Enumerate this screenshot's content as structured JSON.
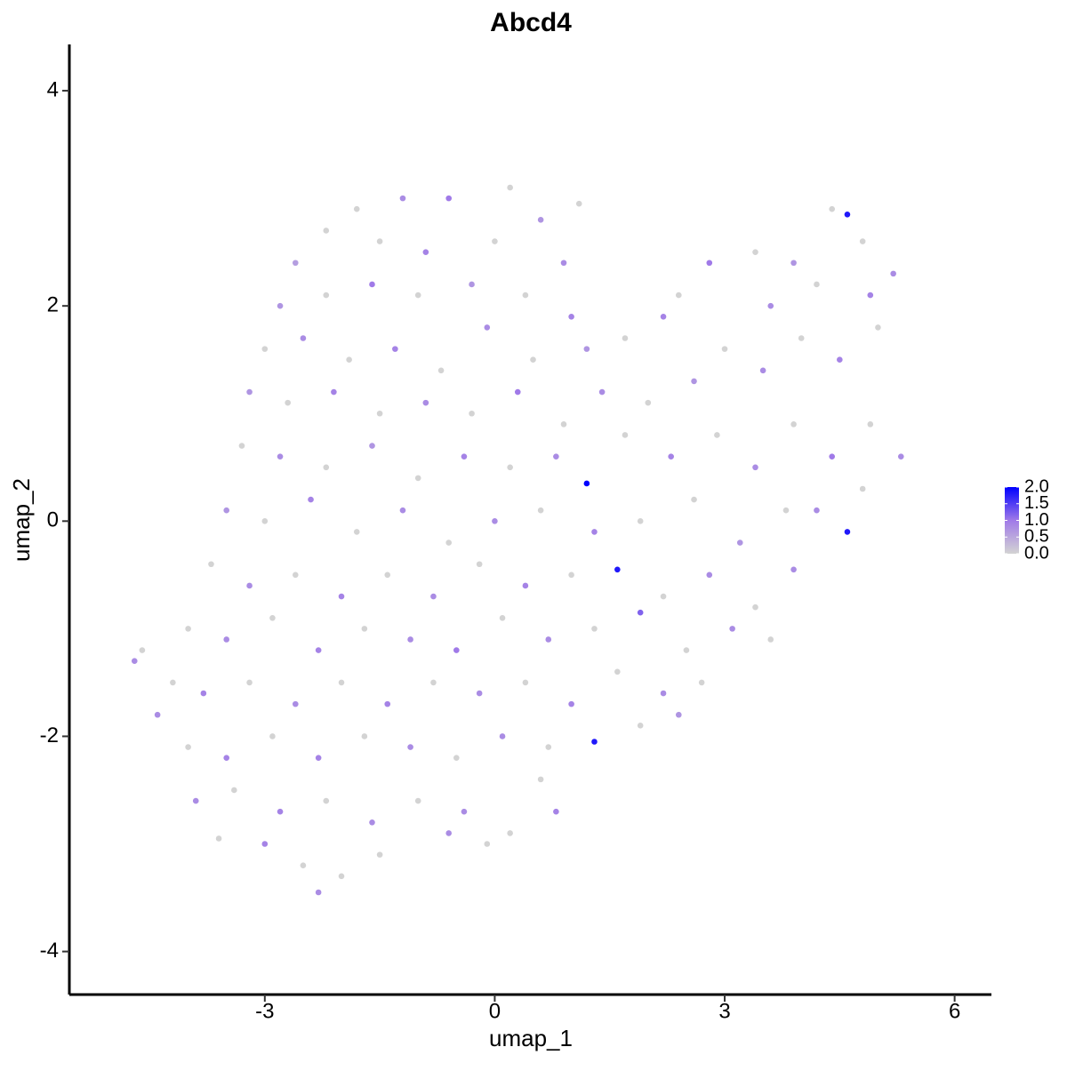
{
  "chart_data": {
    "type": "scatter",
    "title": "Abcd4",
    "x_label": "umap_1",
    "y_label": "umap_2",
    "xlim": [
      -5.55,
      6.48
    ],
    "ylim": [
      -4.4,
      4.43
    ],
    "xticks": [
      -3,
      0,
      3,
      6
    ],
    "yticks": [
      -4,
      -2,
      0,
      2,
      4
    ],
    "color_scale": [
      "#d3d3d3",
      "#a07ae8",
      "#0000ff"
    ],
    "clim": [
      0,
      2
    ],
    "cticks": [
      {
        "value": 0,
        "label": "0.0"
      },
      {
        "value": 0.5,
        "label": "0.5"
      },
      {
        "value": 1,
        "label": "1.0"
      },
      {
        "value": 1.5,
        "label": "1.5"
      },
      {
        "value": 2,
        "label": "2.0"
      }
    ],
    "x": [
      -2.2,
      -1.8,
      -1.2,
      -0.6,
      0.2,
      0.6,
      1.1,
      -2.6,
      -1.5,
      -0.9,
      0.0,
      0.9,
      -2.8,
      -2.2,
      -1.6,
      -1.0,
      -0.3,
      0.4,
      1.0,
      -3.0,
      -2.5,
      -1.9,
      -1.3,
      -0.7,
      -0.1,
      0.5,
      1.2,
      1.7,
      2.2,
      -3.2,
      -2.7,
      -2.1,
      -1.5,
      -0.9,
      -0.3,
      0.3,
      0.9,
      1.4,
      2.0,
      2.6,
      3.0,
      3.5,
      4.0,
      4.5,
      5.0,
      5.2,
      4.8,
      4.4,
      4.6,
      3.9,
      3.4,
      2.8,
      2.4,
      3.6,
      4.2,
      4.9,
      -3.3,
      -2.8,
      -2.2,
      -1.6,
      -1.0,
      -0.4,
      0.2,
      0.8,
      1.2,
      1.7,
      2.3,
      2.9,
      3.4,
      3.9,
      4.4,
      4.9,
      5.3,
      4.8,
      4.2,
      4.6,
      -3.5,
      -3.0,
      -2.4,
      -1.8,
      -1.2,
      -0.6,
      0.0,
      0.6,
      1.3,
      1.9,
      2.6,
      3.2,
      3.8,
      -3.7,
      -3.2,
      -2.6,
      -2.0,
      -1.4,
      -0.8,
      -0.2,
      0.4,
      1.0,
      1.6,
      2.2,
      2.8,
      3.4,
      3.9,
      -4.0,
      -3.5,
      -2.9,
      -2.3,
      -1.7,
      -1.1,
      -0.5,
      0.1,
      0.7,
      1.3,
      1.9,
      2.5,
      3.1,
      3.6,
      -4.7,
      -4.6,
      -4.2,
      -3.8,
      -3.2,
      -2.6,
      -2.0,
      -1.4,
      -0.8,
      -0.2,
      0.4,
      1.0,
      1.6,
      2.2,
      2.7,
      -4.4,
      -4.0,
      -3.5,
      -2.9,
      -2.3,
      -1.7,
      -1.1,
      -0.5,
      0.1,
      0.7,
      1.3,
      1.9,
      2.4,
      -3.9,
      -3.4,
      -2.8,
      -2.2,
      -1.6,
      -1.0,
      -0.4,
      0.2,
      0.8,
      0.6,
      -3.6,
      -3.0,
      -2.5,
      -2.3,
      -2.0,
      -1.5,
      -0.1,
      -0.6
    ],
    "values": [
      2.7,
      2.9,
      3.0,
      3.0,
      3.1,
      2.8,
      2.95,
      2.4,
      2.6,
      2.5,
      2.6,
      2.4,
      2.0,
      2.1,
      2.2,
      2.1,
      2.2,
      2.1,
      1.9,
      1.6,
      1.7,
      1.5,
      1.6,
      1.4,
      1.8,
      1.5,
      1.6,
      1.7,
      1.9,
      1.2,
      1.1,
      1.2,
      1.0,
      1.1,
      1.0,
      1.2,
      0.9,
      1.2,
      1.1,
      1.3,
      1.6,
      1.4,
      1.7,
      1.5,
      1.8,
      2.3,
      2.6,
      2.9,
      2.85,
      2.4,
      2.5,
      2.4,
      2.1,
      2.0,
      2.2,
      2.1,
      0.7,
      0.6,
      0.5,
      0.7,
      0.4,
      0.6,
      0.5,
      0.6,
      0.35,
      0.8,
      0.6,
      0.8,
      0.5,
      0.9,
      0.6,
      0.9,
      0.6,
      0.3,
      0.1,
      -0.1,
      0.1,
      0.0,
      0.2,
      -0.1,
      0.1,
      -0.2,
      0.0,
      0.1,
      -0.1,
      0.0,
      0.2,
      -0.2,
      0.1,
      -0.4,
      -0.6,
      -0.5,
      -0.7,
      -0.5,
      -0.7,
      -0.4,
      -0.6,
      -0.5,
      -0.45,
      -0.7,
      -0.5,
      -0.8,
      -0.45,
      -1.0,
      -1.1,
      -0.9,
      -1.2,
      -1.0,
      -1.1,
      -1.2,
      -0.9,
      -1.1,
      -1.0,
      -0.85,
      -1.2,
      -1.0,
      -1.1,
      -1.3,
      -1.2,
      -1.5,
      -1.6,
      -1.5,
      -1.7,
      -1.5,
      -1.7,
      -1.5,
      -1.6,
      -1.5,
      -1.7,
      -1.4,
      -1.6,
      -1.5,
      -1.8,
      -2.1,
      -2.2,
      -2.0,
      -2.2,
      -2.0,
      -2.1,
      -2.2,
      -2.0,
      -2.1,
      -2.05,
      -1.9,
      -1.8,
      -2.6,
      -2.5,
      -2.7,
      -2.6,
      -2.8,
      -2.6,
      -2.7,
      -2.9,
      -2.7,
      -2.4,
      -2.95,
      -3.0,
      -3.2,
      -3.45,
      -3.3,
      -3.1,
      -3.0,
      -2.9
    ],
    "color_values": [
      0,
      0,
      0.8,
      1.0,
      0,
      0.7,
      0,
      0.6,
      0,
      0.9,
      0,
      0.8,
      0.7,
      0,
      1.0,
      0,
      0.7,
      0,
      0.9,
      0,
      0.8,
      0,
      0.9,
      0,
      0.8,
      0,
      0.7,
      0,
      0.9,
      0.7,
      0,
      0.9,
      0,
      0.8,
      0,
      1.0,
      0,
      0.8,
      0,
      0.7,
      0,
      0.8,
      0,
      0.9,
      0,
      0.8,
      0,
      0,
      1.8,
      0.7,
      0,
      1.0,
      0,
      0.8,
      0,
      0.9,
      0,
      0.8,
      0,
      0.7,
      0,
      0.9,
      0,
      0.8,
      2.0,
      0,
      0.9,
      0,
      0.8,
      0,
      1.0,
      0,
      0.8,
      0,
      0.8,
      1.8,
      0.7,
      0,
      0.9,
      0,
      0.8,
      0,
      0.8,
      0,
      0.9,
      0,
      0,
      0.7,
      0,
      0,
      0.8,
      0,
      0.9,
      0,
      0.8,
      0,
      0.9,
      0,
      1.8,
      0,
      0.8,
      0,
      0.8,
      0,
      0.8,
      0,
      0.9,
      0,
      0.8,
      1.0,
      0,
      0.8,
      0,
      1.2,
      0,
      0.8,
      0,
      0.8,
      0,
      0,
      0.9,
      0,
      0.8,
      0,
      0.9,
      0,
      0.8,
      0,
      0.9,
      0,
      0.8,
      0,
      0.8,
      0,
      0.9,
      0,
      0.9,
      0,
      0.8,
      0,
      0.8,
      0,
      1.8,
      0,
      0.7,
      0.8,
      0,
      0.9,
      0,
      0.8,
      0,
      0.8,
      0,
      0.9,
      0,
      0,
      0.9,
      0,
      0.8,
      0,
      0,
      0,
      0.8
    ]
  }
}
